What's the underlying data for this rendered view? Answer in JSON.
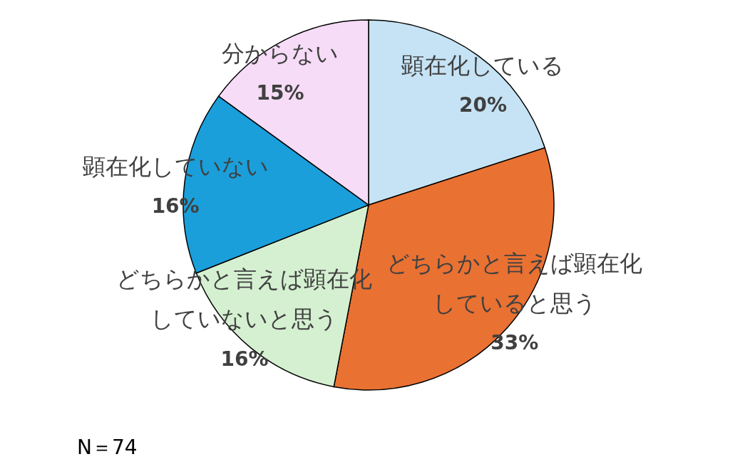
{
  "chart_data": {
    "type": "pie",
    "categories": [
      "顕在化している",
      "どちらかと言えば顕在化していると思う",
      "どちらかと言えば顕在化していないと思う",
      "顕在化していない",
      "分からない"
    ],
    "values": [
      20,
      33,
      16,
      16,
      15
    ],
    "value_labels": [
      "20%",
      "33%",
      "16%",
      "16%",
      "15%"
    ],
    "colors": [
      "#c5e3f4",
      "#e97132",
      "#d4f0d0",
      "#1a9fdb",
      "#f6dcf6"
    ],
    "annotations": [
      "N＝74"
    ]
  }
}
